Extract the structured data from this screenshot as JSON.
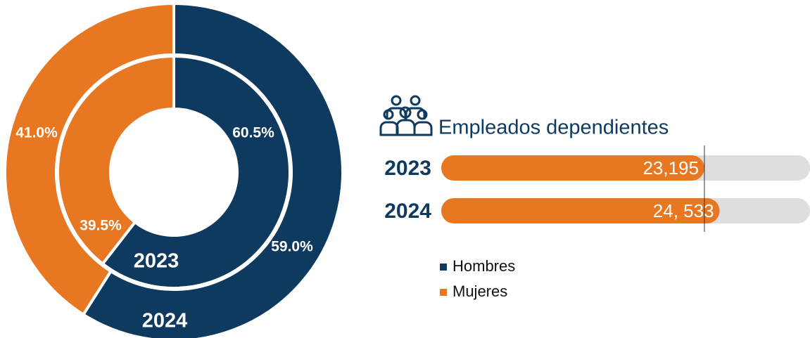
{
  "chart_data": [
    {
      "type": "donut",
      "categories": [
        "2023",
        "2024"
      ],
      "series": [
        {
          "name": "Hombres",
          "color": "#0f3a5f",
          "values": [
            60.5,
            59.0
          ],
          "value_labels": [
            "60.5%",
            "59.0%"
          ]
        },
        {
          "name": "Mujeres",
          "color": "#e87722",
          "values": [
            39.5,
            41.0
          ],
          "value_labels": [
            "39.5%",
            "41.0%"
          ]
        }
      ]
    },
    {
      "type": "bar",
      "title": "Empleados dependientes",
      "categories": [
        "2023",
        "2024"
      ],
      "values": [
        23195,
        24533
      ],
      "value_labels": [
        "23,195",
        "24, 533"
      ],
      "color": "#e87722",
      "xlim": [
        0,
        32500
      ]
    }
  ]
}
